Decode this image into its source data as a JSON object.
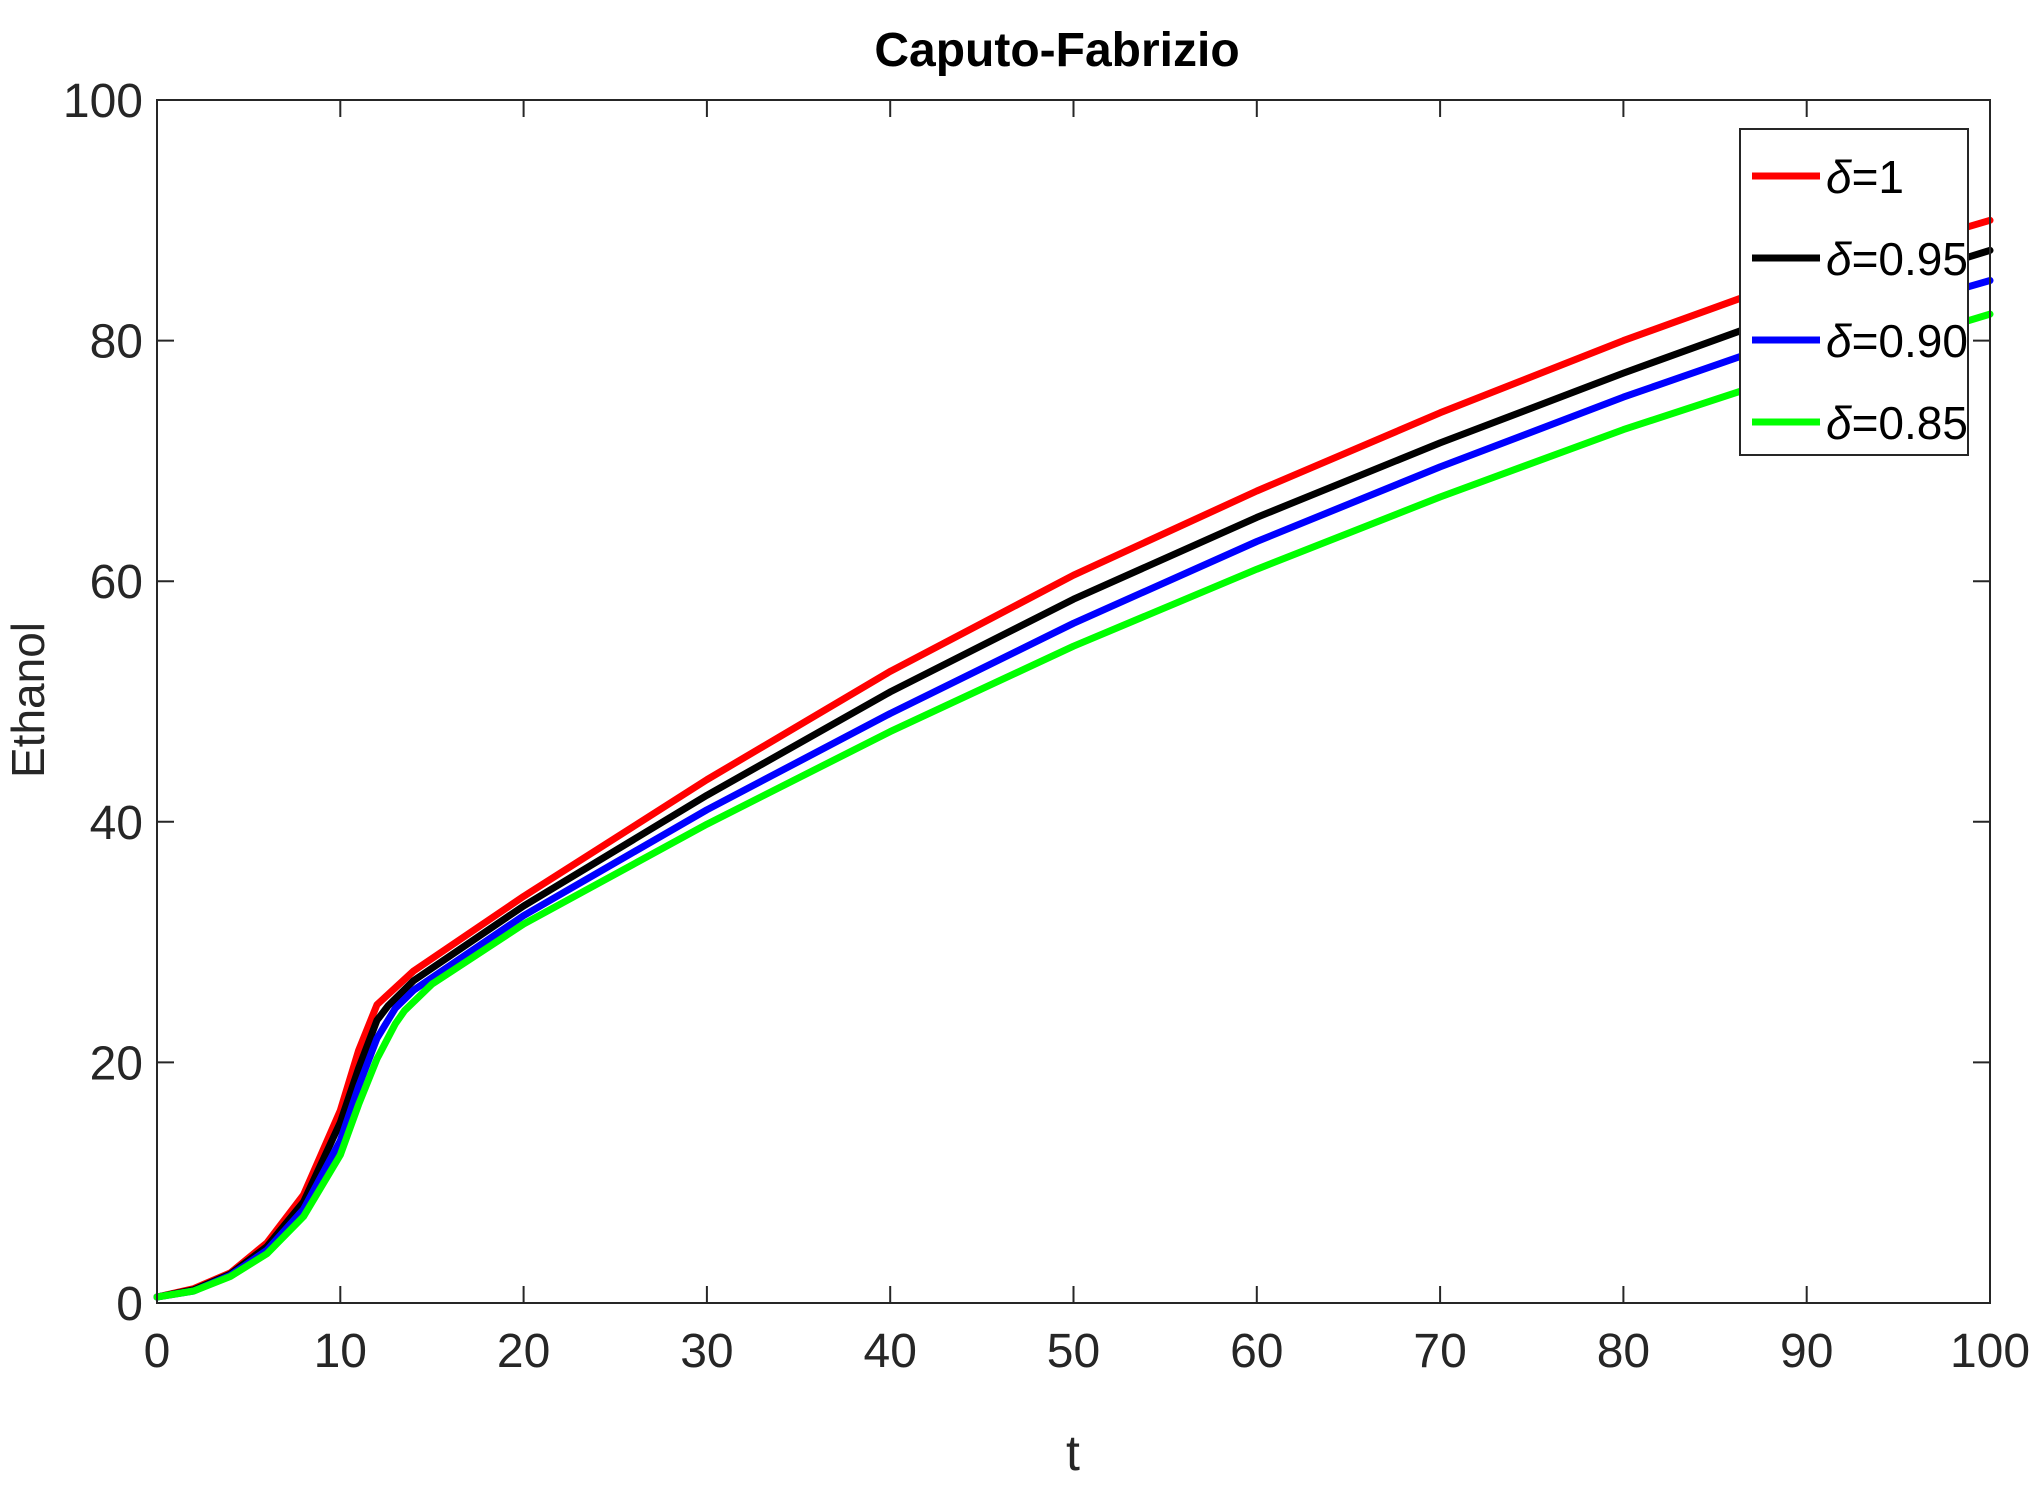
{
  "chart_data": {
    "type": "line",
    "title": "Caputo-Fabrizio",
    "xlabel": "t",
    "ylabel": "Ethanol",
    "xlim": [
      0,
      100
    ],
    "ylim": [
      0,
      100
    ],
    "xticks": [
      0,
      10,
      20,
      30,
      40,
      50,
      60,
      70,
      80,
      90,
      100
    ],
    "yticks": [
      0,
      20,
      40,
      60,
      80,
      100
    ],
    "grid": false,
    "legend_position": "top-right",
    "legend_prefix": "δ",
    "series": [
      {
        "name": "=1",
        "color": "#ff0000",
        "x": [
          0,
          2,
          4,
          6,
          8,
          10,
          11,
          12,
          14,
          20,
          30,
          40,
          50,
          60,
          70,
          80,
          90,
          100
        ],
        "y": [
          0.5,
          1.2,
          2.5,
          5,
          9,
          16,
          21,
          24.8,
          27.6,
          33.8,
          43.5,
          52.5,
          60.5,
          67.5,
          74,
          80,
          85.5,
          90
        ]
      },
      {
        "name": "=0.95",
        "color": "#000000",
        "x": [
          0,
          2,
          4,
          6,
          8,
          10,
          11,
          12,
          12.6,
          14,
          20,
          30,
          40,
          50,
          60,
          70,
          80,
          90,
          100
        ],
        "y": [
          0.5,
          1.1,
          2.4,
          4.7,
          8.4,
          15,
          19.5,
          23.5,
          24.7,
          26.8,
          33,
          42.2,
          50.8,
          58.5,
          65.3,
          71.5,
          77.3,
          82.8,
          87.5
        ]
      },
      {
        "name": "=0.90",
        "color": "#0000ff",
        "x": [
          0,
          2,
          4,
          6,
          8,
          10,
          11,
          12,
          13,
          14,
          20,
          30,
          40,
          50,
          60,
          70,
          80,
          90,
          100
        ],
        "y": [
          0.5,
          1.0,
          2.3,
          4.4,
          7.8,
          13.5,
          18,
          22,
          24.5,
          26,
          32.2,
          41,
          49,
          56.5,
          63.3,
          69.5,
          75.3,
          80.6,
          85
        ]
      },
      {
        "name": "=0.85",
        "color": "#00ff00",
        "x": [
          0,
          2,
          4,
          6,
          8,
          10,
          11,
          12,
          13,
          13.5,
          15,
          20,
          30,
          40,
          50,
          60,
          70,
          80,
          90,
          100
        ],
        "y": [
          0.5,
          1.0,
          2.2,
          4.1,
          7.2,
          12.3,
          16.5,
          20.3,
          23.2,
          24.3,
          26.5,
          31.5,
          39.8,
          47.5,
          54.6,
          61,
          67,
          72.6,
          77.6,
          82.2
        ]
      }
    ]
  }
}
